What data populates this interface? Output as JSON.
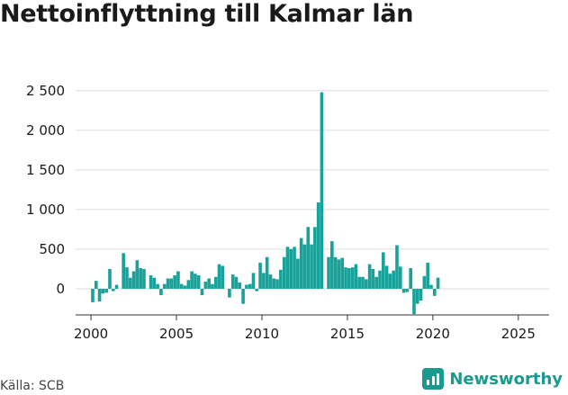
{
  "title": "Nettoinflyttning till Kalmar län",
  "source": "Källa: SCB",
  "brand": "Newsworthy",
  "colors": {
    "bar": "#18a29a",
    "grid": "#dddddd",
    "brand": "#1a9a8f"
  },
  "chart_data": {
    "type": "bar",
    "title": "Nettoinflyttning till Kalmar län",
    "xlabel": "",
    "ylabel": "",
    "ylim": [
      -330,
      2600
    ],
    "yticks": [
      0,
      500,
      1000,
      1500,
      2000,
      2500
    ],
    "ytick_labels": [
      "0",
      "500",
      "1 000",
      "1 500",
      "2 000",
      "2 500"
    ],
    "xlim": [
      1999.1,
      2026.8
    ],
    "xticks": [
      2000,
      2005,
      2010,
      2015,
      2020,
      2025
    ],
    "xtick_labels": [
      "2000",
      "2005",
      "2010",
      "2015",
      "2020",
      "2025"
    ],
    "bar_width_years": 0.19,
    "x_start": 2000.1,
    "x_step": 0.2,
    "grid": true,
    "values": [
      -170,
      100,
      -160,
      -60,
      -50,
      250,
      -30,
      50,
      0,
      450,
      270,
      140,
      220,
      360,
      260,
      250,
      0,
      170,
      140,
      60,
      -80,
      60,
      130,
      130,
      170,
      220,
      60,
      40,
      110,
      220,
      190,
      170,
      -80,
      90,
      130,
      60,
      150,
      310,
      290,
      0,
      -110,
      180,
      150,
      80,
      -190,
      50,
      60,
      200,
      -30,
      330,
      200,
      400,
      180,
      130,
      120,
      240,
      400,
      530,
      500,
      530,
      380,
      640,
      560,
      780,
      560,
      780,
      1090,
      2480,
      0,
      400,
      600,
      400,
      370,
      390,
      270,
      260,
      270,
      310,
      150,
      150,
      120,
      310,
      250,
      150,
      230,
      460,
      290,
      190,
      230,
      550,
      280,
      -50,
      -40,
      260,
      -320,
      -190,
      -150,
      160,
      330,
      50,
      -90,
      140
    ]
  }
}
